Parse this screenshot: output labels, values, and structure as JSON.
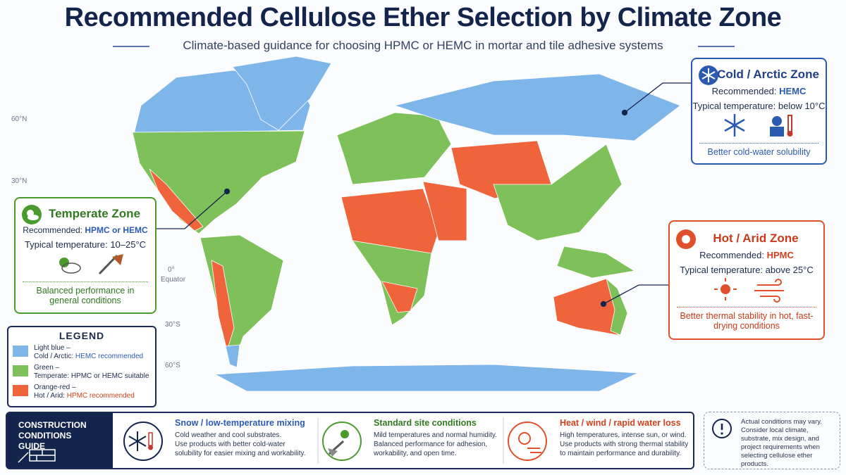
{
  "header": {
    "title": "Recommended Cellulose Ether Selection by Climate Zone",
    "subtitle": "Climate-based guidance for choosing HPMC or HEMC in mortar and tile adhesive systems"
  },
  "latitude_labels": [
    "60°N",
    "30°N",
    "0°",
    "Equator",
    "30°S",
    "60°S"
  ],
  "callouts": [
    {
      "title": "Cold / Arctic Zone",
      "recommended_label": "Recommended:",
      "recommended": "HEMC",
      "temperature": "Typical temperature: below 10°C",
      "note": "Better cold-water solubility"
    },
    {
      "title": "Temperate Zone",
      "recommended_label": "Recommended:",
      "recommended": "HPMC or HEMC",
      "temperature": "Typical temperature: 10–25°C",
      "note": "Balanced performance in general conditions"
    },
    {
      "title": "Hot / Arid Zone",
      "recommended_label": "Recommended:",
      "recommended": "HPMC",
      "temperature": "Typical temperature: above 25°C",
      "note": "Better thermal stability in hot, fast-drying conditions"
    }
  ],
  "legend": {
    "title": "LEGEND",
    "items": [
      {
        "label": "Light blue –",
        "description": "Cold / Arctic:",
        "highlight": "HEMC recommended"
      },
      {
        "label": "Green –",
        "description": "Temperate:",
        "highlight": "HPMC or HEMC suitable"
      },
      {
        "label": "Orange-red –",
        "description": "Hot / Arid:",
        "highlight": "HPMC recommended"
      }
    ]
  },
  "guide": {
    "title": "CONSTRUCTION CONDITIONS GUIDE",
    "items": [
      {
        "title": "Snow / low-temperature mixing",
        "lines": [
          "Cold weather and cool substrates.",
          "Use products with better cold-water",
          "solubility for easier mixing and workability."
        ]
      },
      {
        "title": "Standard site conditions",
        "lines": [
          "Mild temperatures and normal humidity.",
          "Balanced performance for adhesion,",
          "workability, and open time."
        ]
      },
      {
        "title": "Heat / wind / rapid water loss",
        "lines": [
          "High temperatures, intense sun, or wind.",
          "Use products with strong thermal stability",
          "to maintain performance and durability."
        ]
      }
    ]
  },
  "notice": "Actual conditions may vary. Consider local climate, substrate, mix design, and project requirements when selecting cellulose ether products."
}
